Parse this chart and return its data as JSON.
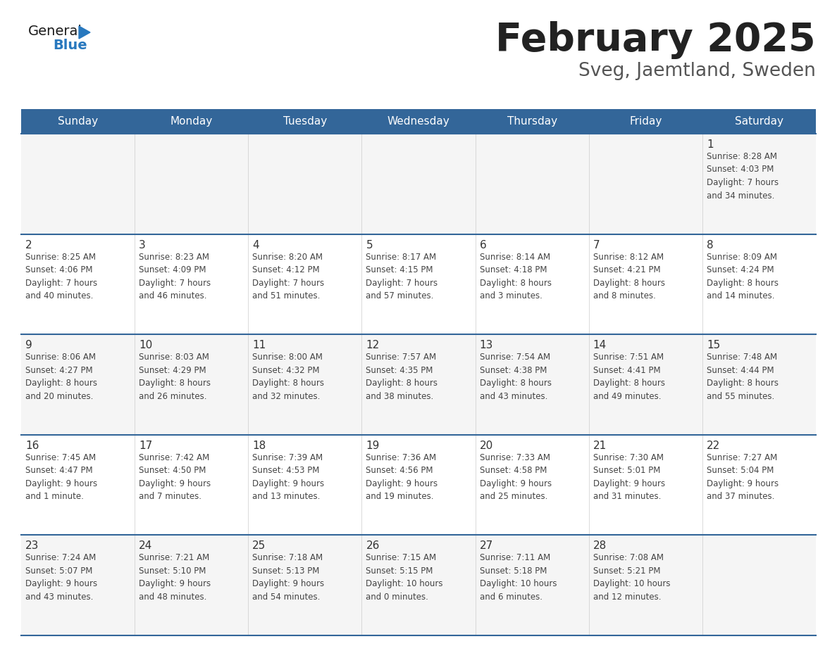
{
  "title": "February 2025",
  "subtitle": "Sveg, Jaemtland, Sweden",
  "days_of_week": [
    "Sunday",
    "Monday",
    "Tuesday",
    "Wednesday",
    "Thursday",
    "Friday",
    "Saturday"
  ],
  "header_bg": "#336699",
  "header_text_color": "#ffffff",
  "row_bg_even": "#f5f5f5",
  "row_bg_odd": "#ffffff",
  "cell_text_color": "#444444",
  "day_num_color": "#333333",
  "border_color": "#336699",
  "title_color": "#222222",
  "subtitle_color": "#555555",
  "logo_general_color": "#1a1a1a",
  "logo_blue_color": "#2878be",
  "fig_width": 11.88,
  "fig_height": 9.18,
  "dpi": 100,
  "calendar_data": [
    [
      {
        "day": null,
        "info": null
      },
      {
        "day": null,
        "info": null
      },
      {
        "day": null,
        "info": null
      },
      {
        "day": null,
        "info": null
      },
      {
        "day": null,
        "info": null
      },
      {
        "day": null,
        "info": null
      },
      {
        "day": 1,
        "info": "Sunrise: 8:28 AM\nSunset: 4:03 PM\nDaylight: 7 hours\nand 34 minutes."
      }
    ],
    [
      {
        "day": 2,
        "info": "Sunrise: 8:25 AM\nSunset: 4:06 PM\nDaylight: 7 hours\nand 40 minutes."
      },
      {
        "day": 3,
        "info": "Sunrise: 8:23 AM\nSunset: 4:09 PM\nDaylight: 7 hours\nand 46 minutes."
      },
      {
        "day": 4,
        "info": "Sunrise: 8:20 AM\nSunset: 4:12 PM\nDaylight: 7 hours\nand 51 minutes."
      },
      {
        "day": 5,
        "info": "Sunrise: 8:17 AM\nSunset: 4:15 PM\nDaylight: 7 hours\nand 57 minutes."
      },
      {
        "day": 6,
        "info": "Sunrise: 8:14 AM\nSunset: 4:18 PM\nDaylight: 8 hours\nand 3 minutes."
      },
      {
        "day": 7,
        "info": "Sunrise: 8:12 AM\nSunset: 4:21 PM\nDaylight: 8 hours\nand 8 minutes."
      },
      {
        "day": 8,
        "info": "Sunrise: 8:09 AM\nSunset: 4:24 PM\nDaylight: 8 hours\nand 14 minutes."
      }
    ],
    [
      {
        "day": 9,
        "info": "Sunrise: 8:06 AM\nSunset: 4:27 PM\nDaylight: 8 hours\nand 20 minutes."
      },
      {
        "day": 10,
        "info": "Sunrise: 8:03 AM\nSunset: 4:29 PM\nDaylight: 8 hours\nand 26 minutes."
      },
      {
        "day": 11,
        "info": "Sunrise: 8:00 AM\nSunset: 4:32 PM\nDaylight: 8 hours\nand 32 minutes."
      },
      {
        "day": 12,
        "info": "Sunrise: 7:57 AM\nSunset: 4:35 PM\nDaylight: 8 hours\nand 38 minutes."
      },
      {
        "day": 13,
        "info": "Sunrise: 7:54 AM\nSunset: 4:38 PM\nDaylight: 8 hours\nand 43 minutes."
      },
      {
        "day": 14,
        "info": "Sunrise: 7:51 AM\nSunset: 4:41 PM\nDaylight: 8 hours\nand 49 minutes."
      },
      {
        "day": 15,
        "info": "Sunrise: 7:48 AM\nSunset: 4:44 PM\nDaylight: 8 hours\nand 55 minutes."
      }
    ],
    [
      {
        "day": 16,
        "info": "Sunrise: 7:45 AM\nSunset: 4:47 PM\nDaylight: 9 hours\nand 1 minute."
      },
      {
        "day": 17,
        "info": "Sunrise: 7:42 AM\nSunset: 4:50 PM\nDaylight: 9 hours\nand 7 minutes."
      },
      {
        "day": 18,
        "info": "Sunrise: 7:39 AM\nSunset: 4:53 PM\nDaylight: 9 hours\nand 13 minutes."
      },
      {
        "day": 19,
        "info": "Sunrise: 7:36 AM\nSunset: 4:56 PM\nDaylight: 9 hours\nand 19 minutes."
      },
      {
        "day": 20,
        "info": "Sunrise: 7:33 AM\nSunset: 4:58 PM\nDaylight: 9 hours\nand 25 minutes."
      },
      {
        "day": 21,
        "info": "Sunrise: 7:30 AM\nSunset: 5:01 PM\nDaylight: 9 hours\nand 31 minutes."
      },
      {
        "day": 22,
        "info": "Sunrise: 7:27 AM\nSunset: 5:04 PM\nDaylight: 9 hours\nand 37 minutes."
      }
    ],
    [
      {
        "day": 23,
        "info": "Sunrise: 7:24 AM\nSunset: 5:07 PM\nDaylight: 9 hours\nand 43 minutes."
      },
      {
        "day": 24,
        "info": "Sunrise: 7:21 AM\nSunset: 5:10 PM\nDaylight: 9 hours\nand 48 minutes."
      },
      {
        "day": 25,
        "info": "Sunrise: 7:18 AM\nSunset: 5:13 PM\nDaylight: 9 hours\nand 54 minutes."
      },
      {
        "day": 26,
        "info": "Sunrise: 7:15 AM\nSunset: 5:15 PM\nDaylight: 10 hours\nand 0 minutes."
      },
      {
        "day": 27,
        "info": "Sunrise: 7:11 AM\nSunset: 5:18 PM\nDaylight: 10 hours\nand 6 minutes."
      },
      {
        "day": 28,
        "info": "Sunrise: 7:08 AM\nSunset: 5:21 PM\nDaylight: 10 hours\nand 12 minutes."
      },
      {
        "day": null,
        "info": null
      }
    ]
  ]
}
